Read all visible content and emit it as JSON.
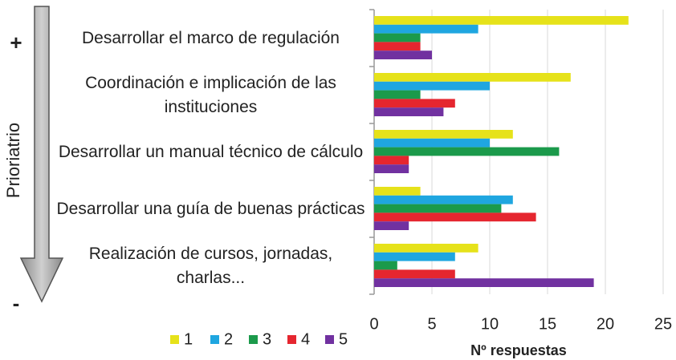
{
  "chart_data": {
    "type": "barh",
    "annotations": [
      "+",
      "Prioriatrio",
      "-"
    ],
    "categories": [
      "Desarrollar el marco de regulación",
      "Coordinación e implicación de las instituciones",
      "Desarrollar un manual técnico de cálculo",
      "Desarrollar una guía de buenas prácticas",
      "Realización de cursos, jornadas, charlas..."
    ],
    "series": [
      {
        "name": "1",
        "color": "#e6e21a",
        "values": [
          22,
          17,
          12,
          4,
          9
        ]
      },
      {
        "name": "2",
        "color": "#1fa6e0",
        "values": [
          9,
          10,
          10,
          12,
          7
        ]
      },
      {
        "name": "3",
        "color": "#1b9a4b",
        "values": [
          4,
          4,
          16,
          11,
          2
        ]
      },
      {
        "name": "4",
        "color": "#e5262f",
        "values": [
          4,
          7,
          3,
          14,
          7
        ]
      },
      {
        "name": "5",
        "color": "#7131a0",
        "values": [
          5,
          6,
          3,
          3,
          19
        ]
      }
    ],
    "xlabel": "Nº respuestas",
    "xlim": [
      0,
      25
    ],
    "xticks": [
      0,
      5,
      10,
      15,
      20,
      25
    ],
    "grid": true,
    "legend": "bottom"
  }
}
